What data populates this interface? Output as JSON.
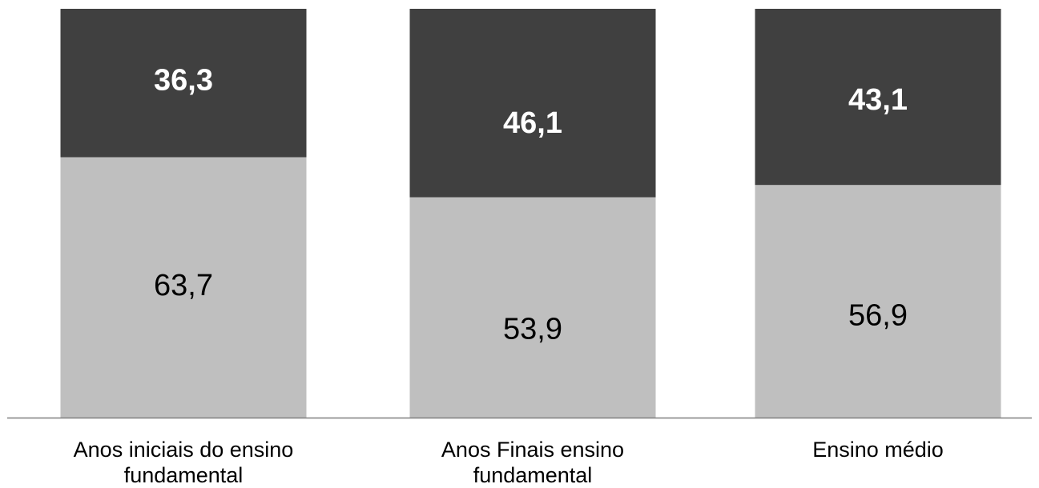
{
  "chart_data": {
    "type": "bar",
    "stacked": true,
    "percent_stacked": true,
    "categories": [
      [
        "Anos iniciais do ensino",
        "fundamental"
      ],
      [
        "Anos Finais ensino",
        "fundamental"
      ],
      [
        "Ensino médio"
      ]
    ],
    "series": [
      {
        "values": [
          63.7,
          53.9,
          56.9
        ],
        "labels": [
          "63,7",
          "53,9",
          "56,9"
        ],
        "color": "#bfbfbf",
        "label_color": "#000000"
      },
      {
        "values": [
          36.3,
          46.1,
          43.1
        ],
        "labels": [
          "36,3",
          "46,1",
          "43,1"
        ],
        "color": "#404040",
        "label_color": "#ffffff"
      }
    ],
    "ylim": [
      0,
      100
    ],
    "axis_color": "#7f7f7f",
    "grid": false,
    "legend": "none",
    "title": "",
    "xlabel": "",
    "ylabel": ""
  }
}
